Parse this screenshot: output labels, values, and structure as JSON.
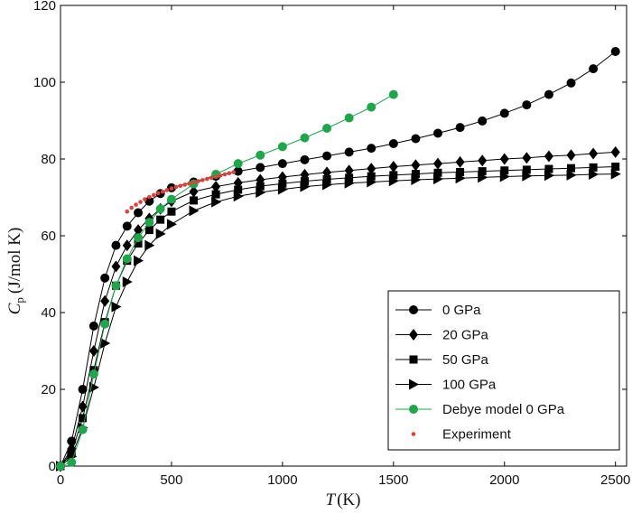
{
  "chart_data": {
    "type": "line",
    "xlabel": "T (K)",
    "ylabel": "C_p (J/mol K)",
    "xlabel_parts": {
      "var": "T",
      "unit": "(K)"
    },
    "ylabel_parts": {
      "var": "C",
      "sub": "p",
      "unit": "(J/mol K)"
    },
    "xlim": [
      0,
      2550
    ],
    "ylim": [
      0,
      120
    ],
    "xticks": [
      0,
      500,
      1000,
      1500,
      2000,
      2500
    ],
    "yticks": [
      0,
      20,
      40,
      60,
      80,
      100,
      120
    ],
    "grid": false,
    "legend_position": "bottom-right",
    "series": [
      {
        "name": "0 GPa",
        "marker": "circle",
        "color": "#000000",
        "x": [
          0,
          50,
          100,
          150,
          200,
          250,
          300,
          350,
          400,
          450,
          500,
          600,
          700,
          800,
          900,
          1000,
          1100,
          1200,
          1300,
          1400,
          1500,
          1600,
          1700,
          1800,
          1900,
          2000,
          2100,
          2200,
          2300,
          2400,
          2500
        ],
        "y": [
          0,
          6.5,
          20,
          36.5,
          49,
          57.5,
          62.5,
          66,
          69,
          71,
          72.5,
          74,
          75.5,
          76.8,
          77.8,
          78.8,
          79.8,
          80.8,
          81.8,
          82.8,
          84,
          85.3,
          86.7,
          88.2,
          89.9,
          91.9,
          94.1,
          96.8,
          99.8,
          103.5,
          108
        ]
      },
      {
        "name": "20 GPa",
        "marker": "diamond",
        "color": "#000000",
        "x": [
          0,
          50,
          100,
          150,
          200,
          250,
          300,
          350,
          400,
          450,
          500,
          600,
          700,
          800,
          900,
          1000,
          1100,
          1200,
          1300,
          1400,
          1500,
          1600,
          1700,
          1800,
          1900,
          2000,
          2100,
          2200,
          2300,
          2400,
          2500
        ],
        "y": [
          0,
          4.5,
          15.5,
          30,
          43,
          52,
          57.5,
          61.5,
          64.5,
          67,
          69,
          71.5,
          72.8,
          73.8,
          74.6,
          75.3,
          75.9,
          76.5,
          77,
          77.5,
          78,
          78.4,
          78.8,
          79.2,
          79.6,
          80,
          80.3,
          80.7,
          81,
          81.4,
          81.8
        ]
      },
      {
        "name": "50 GPa",
        "marker": "square",
        "color": "#000000",
        "x": [
          0,
          50,
          100,
          150,
          200,
          250,
          300,
          350,
          400,
          450,
          500,
          600,
          700,
          800,
          900,
          1000,
          1100,
          1200,
          1300,
          1400,
          1500,
          1600,
          1700,
          1800,
          1900,
          2000,
          2100,
          2200,
          2300,
          2400,
          2500
        ],
        "y": [
          0,
          3.5,
          12.5,
          25,
          37.5,
          47,
          53.5,
          58,
          61.5,
          64.2,
          66.3,
          69.2,
          70.8,
          72,
          72.9,
          73.6,
          74.2,
          74.7,
          75.1,
          75.5,
          75.8,
          76.1,
          76.4,
          76.6,
          76.8,
          77,
          77.2,
          77.4,
          77.6,
          77.8,
          78
        ]
      },
      {
        "name": "100 GPa",
        "marker": "triangle-right",
        "color": "#000000",
        "x": [
          0,
          50,
          100,
          150,
          200,
          250,
          300,
          350,
          400,
          450,
          500,
          600,
          700,
          800,
          900,
          1000,
          1100,
          1200,
          1300,
          1400,
          1500,
          1600,
          1700,
          1800,
          1900,
          2000,
          2100,
          2200,
          2300,
          2400,
          2500
        ],
        "y": [
          0,
          2.5,
          10,
          20.5,
          32,
          41.5,
          48,
          53.5,
          57.5,
          60.5,
          63,
          66.5,
          68.8,
          70.3,
          71.3,
          72.1,
          72.8,
          73.3,
          73.7,
          74,
          74.3,
          74.6,
          74.8,
          75,
          75.2,
          75.4,
          75.6,
          75.7,
          75.8,
          76,
          76.1
        ]
      },
      {
        "name": "Debye model 0 GPa",
        "marker": "circle",
        "color": "#1ea64a",
        "x": [
          0,
          50,
          100,
          150,
          200,
          250,
          300,
          350,
          400,
          450,
          500,
          600,
          700,
          800,
          900,
          1000,
          1100,
          1200,
          1300,
          1400,
          1500
        ],
        "y": [
          0,
          1,
          9.5,
          24,
          37,
          47,
          54,
          59.5,
          63.5,
          67,
          69.5,
          73.5,
          76,
          78.8,
          81,
          83.2,
          85.5,
          88,
          90.7,
          93.5,
          96.8
        ]
      },
      {
        "name": "Experiment",
        "marker": "dot",
        "color": "#e0403a",
        "x": [
          300,
          320,
          340,
          360,
          380,
          400,
          420,
          440,
          460,
          480,
          500,
          520,
          540,
          560,
          580,
          600,
          620,
          640,
          660,
          680,
          700,
          720,
          740,
          760,
          780
        ],
        "y": [
          66.3,
          67.3,
          68.1,
          68.8,
          69.5,
          70.1,
          70.6,
          71.1,
          71.5,
          71.9,
          72.3,
          72.7,
          73.0,
          73.3,
          73.6,
          73.9,
          74.2,
          74.5,
          74.8,
          75.1,
          75.4,
          75.7,
          76.0,
          76.3,
          76.6
        ]
      }
    ]
  }
}
